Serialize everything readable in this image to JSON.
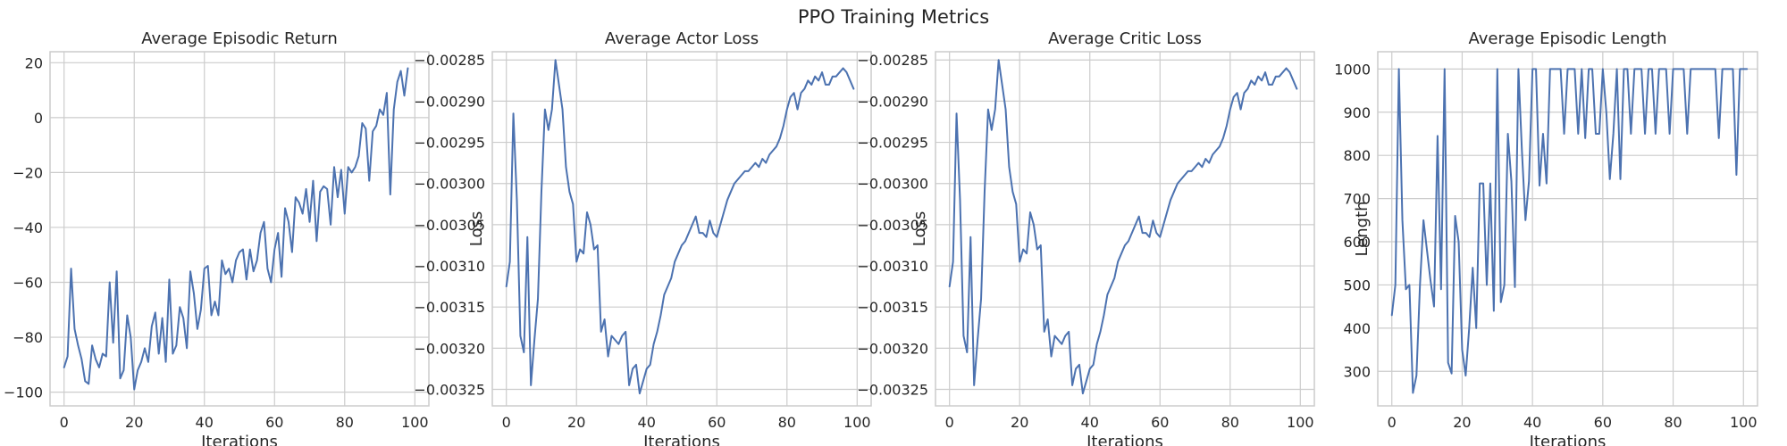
{
  "figure": {
    "suptitle": "PPO Training Metrics",
    "line_color": "#4c72b0"
  },
  "chart_data": [
    {
      "type": "line",
      "title": "Average Episodic Return",
      "xlabel": "Iterations",
      "ylabel": "",
      "xlim": [
        -4,
        104
      ],
      "ylim": [
        -105,
        24
      ],
      "xticks": [
        0,
        20,
        40,
        60,
        80,
        100
      ],
      "yticks": [
        -100,
        -80,
        -60,
        -40,
        -20,
        0,
        20
      ],
      "ytick_labels": [
        "−100",
        "−80",
        "−60",
        "−40",
        "−20",
        "0",
        "20"
      ],
      "grid": true,
      "x_start": 0,
      "y": [
        -91,
        -87,
        -55,
        -77,
        -83,
        -88,
        -96,
        -97,
        -83,
        -88,
        -91,
        -86,
        -87,
        -60,
        -82,
        -56,
        -95,
        -92,
        -72,
        -80,
        -99,
        -92,
        -89,
        -84,
        -89,
        -76,
        -71,
        -86,
        -73,
        -89,
        -59,
        -86,
        -83,
        -69,
        -73,
        -84,
        -56,
        -64,
        -77,
        -70,
        -55,
        -54,
        -72,
        -67,
        -72,
        -52,
        -57,
        -55,
        -60,
        -52,
        -49,
        -48,
        -59,
        -48,
        -56,
        -52,
        -42,
        -38,
        -55,
        -60,
        -48,
        -42,
        -58,
        -33,
        -38,
        -49,
        -29,
        -31,
        -35,
        -26,
        -38,
        -23,
        -45,
        -27,
        -25,
        -26,
        -39,
        -18,
        -29,
        -19,
        -35,
        -18,
        -20,
        -18,
        -14,
        -2,
        -4,
        -23,
        -5,
        -3,
        3,
        1,
        9,
        -28,
        3,
        13,
        17,
        8,
        18
      ]
    },
    {
      "type": "line",
      "title": "Average Actor Loss",
      "xlabel": "Iterations",
      "ylabel": "Loss",
      "xlim": [
        -4,
        104
      ],
      "ylim": [
        -0.00327,
        -0.00284
      ],
      "xticks": [
        0,
        20,
        40,
        60,
        80,
        100
      ],
      "yticks": [
        -0.00325,
        -0.0032,
        -0.00315,
        -0.0031,
        -0.00305,
        -0.003,
        -0.00295,
        -0.0029,
        -0.00285
      ],
      "ytick_labels": [
        "−0.00325",
        "−0.00320",
        "−0.00315",
        "−0.00310",
        "−0.00305",
        "−0.00300",
        "−0.00295",
        "−0.00290",
        "−0.00285"
      ],
      "grid": true,
      "x_start": 0,
      "y": [
        -0.003125,
        -0.003095,
        -0.002915,
        -0.00302,
        -0.003185,
        -0.003205,
        -0.003065,
        -0.003245,
        -0.00319,
        -0.00314,
        -0.00301,
        -0.00291,
        -0.002935,
        -0.00291,
        -0.00285,
        -0.00288,
        -0.00291,
        -0.00298,
        -0.00301,
        -0.003025,
        -0.003095,
        -0.00308,
        -0.003085,
        -0.003035,
        -0.00305,
        -0.00308,
        -0.003075,
        -0.00318,
        -0.003165,
        -0.00321,
        -0.003185,
        -0.00319,
        -0.003195,
        -0.003185,
        -0.00318,
        -0.003245,
        -0.003225,
        -0.00322,
        -0.003255,
        -0.00324,
        -0.003225,
        -0.00322,
        -0.003195,
        -0.00318,
        -0.00316,
        -0.003135,
        -0.003125,
        -0.003115,
        -0.003095,
        -0.003085,
        -0.003075,
        -0.00307,
        -0.00306,
        -0.00305,
        -0.00304,
        -0.00306,
        -0.00306,
        -0.003065,
        -0.003045,
        -0.00306,
        -0.003065,
        -0.00305,
        -0.003035,
        -0.00302,
        -0.00301,
        -0.003,
        -0.002995,
        -0.00299,
        -0.002985,
        -0.002985,
        -0.00298,
        -0.002975,
        -0.00298,
        -0.00297,
        -0.002975,
        -0.002965,
        -0.00296,
        -0.002955,
        -0.002945,
        -0.00293,
        -0.00291,
        -0.002895,
        -0.00289,
        -0.00291,
        -0.00289,
        -0.002885,
        -0.002875,
        -0.00288,
        -0.00287,
        -0.002875,
        -0.002865,
        -0.00288,
        -0.00288,
        -0.00287,
        -0.00287,
        -0.002865,
        -0.00286,
        -0.002865,
        -0.002875,
        -0.002885
      ]
    },
    {
      "type": "line",
      "title": "Average Critic Loss",
      "xlabel": "Iterations",
      "ylabel": "Loss",
      "xlim": [
        -4,
        104
      ],
      "ylim": [
        -0.00327,
        -0.00284
      ],
      "xticks": [
        0,
        20,
        40,
        60,
        80,
        100
      ],
      "yticks": [
        -0.00325,
        -0.0032,
        -0.00315,
        -0.0031,
        -0.00305,
        -0.003,
        -0.00295,
        -0.0029,
        -0.00285
      ],
      "ytick_labels": [
        "−0.00325",
        "−0.00320",
        "−0.00315",
        "−0.00310",
        "−0.00305",
        "−0.00300",
        "−0.00295",
        "−0.00290",
        "−0.00285"
      ],
      "grid": true,
      "x_start": 0,
      "y": [
        -0.003125,
        -0.003095,
        -0.002915,
        -0.00302,
        -0.003185,
        -0.003205,
        -0.003065,
        -0.003245,
        -0.00319,
        -0.00314,
        -0.00301,
        -0.00291,
        -0.002935,
        -0.00291,
        -0.00285,
        -0.00288,
        -0.00291,
        -0.00298,
        -0.00301,
        -0.003025,
        -0.003095,
        -0.00308,
        -0.003085,
        -0.003035,
        -0.00305,
        -0.00308,
        -0.003075,
        -0.00318,
        -0.003165,
        -0.00321,
        -0.003185,
        -0.00319,
        -0.003195,
        -0.003185,
        -0.00318,
        -0.003245,
        -0.003225,
        -0.00322,
        -0.003255,
        -0.00324,
        -0.003225,
        -0.00322,
        -0.003195,
        -0.00318,
        -0.00316,
        -0.003135,
        -0.003125,
        -0.003115,
        -0.003095,
        -0.003085,
        -0.003075,
        -0.00307,
        -0.00306,
        -0.00305,
        -0.00304,
        -0.00306,
        -0.00306,
        -0.003065,
        -0.003045,
        -0.00306,
        -0.003065,
        -0.00305,
        -0.003035,
        -0.00302,
        -0.00301,
        -0.003,
        -0.002995,
        -0.00299,
        -0.002985,
        -0.002985,
        -0.00298,
        -0.002975,
        -0.00298,
        -0.00297,
        -0.002975,
        -0.002965,
        -0.00296,
        -0.002955,
        -0.002945,
        -0.00293,
        -0.00291,
        -0.002895,
        -0.00289,
        -0.00291,
        -0.00289,
        -0.002885,
        -0.002875,
        -0.00288,
        -0.00287,
        -0.002875,
        -0.002865,
        -0.00288,
        -0.00288,
        -0.00287,
        -0.00287,
        -0.002865,
        -0.00286,
        -0.002865,
        -0.002875,
        -0.002885
      ]
    },
    {
      "type": "line",
      "title": "Average Episodic Length",
      "xlabel": "Iterations",
      "ylabel": "Length",
      "xlim": [
        -4,
        104
      ],
      "ylim": [
        220,
        1040
      ],
      "xticks": [
        0,
        20,
        40,
        60,
        80,
        100
      ],
      "yticks": [
        300,
        400,
        500,
        600,
        700,
        800,
        900,
        1000
      ],
      "ytick_labels": [
        "300",
        "400",
        "500",
        "600",
        "700",
        "800",
        "900",
        "1000"
      ],
      "grid": true,
      "x_start": 0,
      "y": [
        430,
        500,
        1000,
        650,
        490,
        500,
        250,
        290,
        500,
        650,
        580,
        510,
        450,
        845,
        490,
        1000,
        320,
        295,
        660,
        600,
        350,
        290,
        400,
        540,
        400,
        735,
        735,
        500,
        735,
        440,
        1000,
        460,
        500,
        850,
        740,
        495,
        1000,
        810,
        650,
        740,
        1000,
        1000,
        730,
        850,
        735,
        1000,
        1000,
        1000,
        1000,
        850,
        1000,
        1000,
        1000,
        850,
        1000,
        840,
        1000,
        1000,
        850,
        850,
        1000,
        900,
        745,
        850,
        1000,
        745,
        1000,
        1000,
        850,
        1000,
        1000,
        1000,
        850,
        1000,
        1000,
        850,
        1000,
        1000,
        1000,
        850,
        1000,
        1000,
        1000,
        1000,
        850,
        1000,
        1000,
        1000,
        1000,
        1000,
        1000,
        1000,
        1000,
        840,
        1000,
        1000,
        1000,
        1000,
        755,
        1000,
        1000,
        1000
      ]
    }
  ]
}
